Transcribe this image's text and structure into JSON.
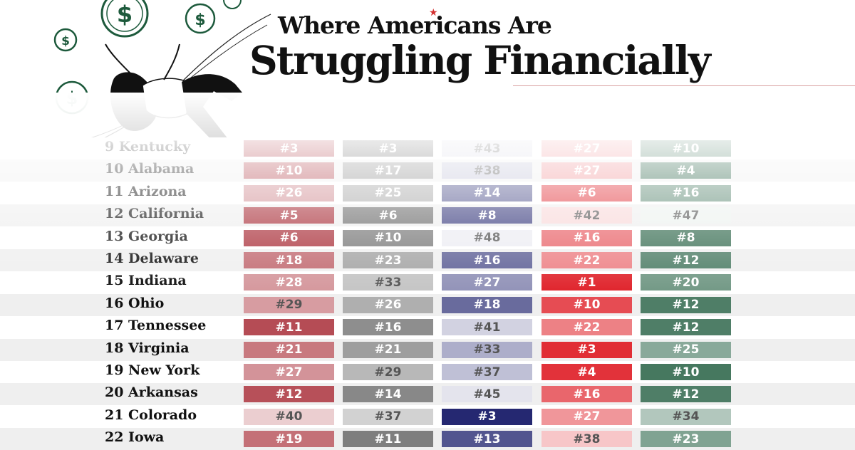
{
  "title": {
    "line1": "Where Americans Are",
    "line2": "Struggling Financially"
  },
  "colors": {
    "accent_red": "#d32f2f",
    "col1": "#a31f2a",
    "col2": "#5e5e5e",
    "col3": "#1c1f6b",
    "col4": "#e0252d",
    "col5": "#1d5a3c"
  },
  "chart_data": {
    "type": "table",
    "columns": [
      "",
      "",
      "",
      "",
      ""
    ],
    "rows": [
      {
        "rank": "9",
        "state": "Kentucky",
        "values": [
          "#3",
          "#3",
          "#43",
          "#27",
          "#10"
        ]
      },
      {
        "rank": "10",
        "state": "Alabama",
        "values": [
          "#10",
          "#17",
          "#38",
          "#27",
          "#4"
        ]
      },
      {
        "rank": "11",
        "state": "Arizona",
        "values": [
          "#26",
          "#25",
          "#14",
          "#6",
          "#16"
        ]
      },
      {
        "rank": "12",
        "state": "California",
        "values": [
          "#5",
          "#6",
          "#8",
          "#42",
          "#47"
        ]
      },
      {
        "rank": "13",
        "state": "Georgia",
        "values": [
          "#6",
          "#10",
          "#48",
          "#16",
          "#8"
        ]
      },
      {
        "rank": "14",
        "state": "Delaware",
        "values": [
          "#18",
          "#23",
          "#16",
          "#22",
          "#12"
        ]
      },
      {
        "rank": "15",
        "state": "Indiana",
        "values": [
          "#28",
          "#33",
          "#27",
          "#1",
          "#20"
        ]
      },
      {
        "rank": "16",
        "state": "Ohio",
        "values": [
          "#29",
          "#26",
          "#18",
          "#10",
          "#12"
        ]
      },
      {
        "rank": "17",
        "state": "Tennessee",
        "values": [
          "#11",
          "#16",
          "#41",
          "#22",
          "#12"
        ]
      },
      {
        "rank": "18",
        "state": "Virginia",
        "values": [
          "#21",
          "#21",
          "#33",
          "#3",
          "#25"
        ]
      },
      {
        "rank": "19",
        "state": "New York",
        "values": [
          "#27",
          "#29",
          "#37",
          "#4",
          "#10"
        ]
      },
      {
        "rank": "20",
        "state": "Arkansas",
        "values": [
          "#12",
          "#14",
          "#45",
          "#16",
          "#12"
        ]
      },
      {
        "rank": "21",
        "state": "Colorado",
        "values": [
          "#40",
          "#37",
          "#3",
          "#27",
          "#34"
        ]
      },
      {
        "rank": "22",
        "state": "Iowa",
        "values": [
          "#19",
          "#11",
          "#13",
          "#38",
          "#23"
        ]
      }
    ]
  }
}
